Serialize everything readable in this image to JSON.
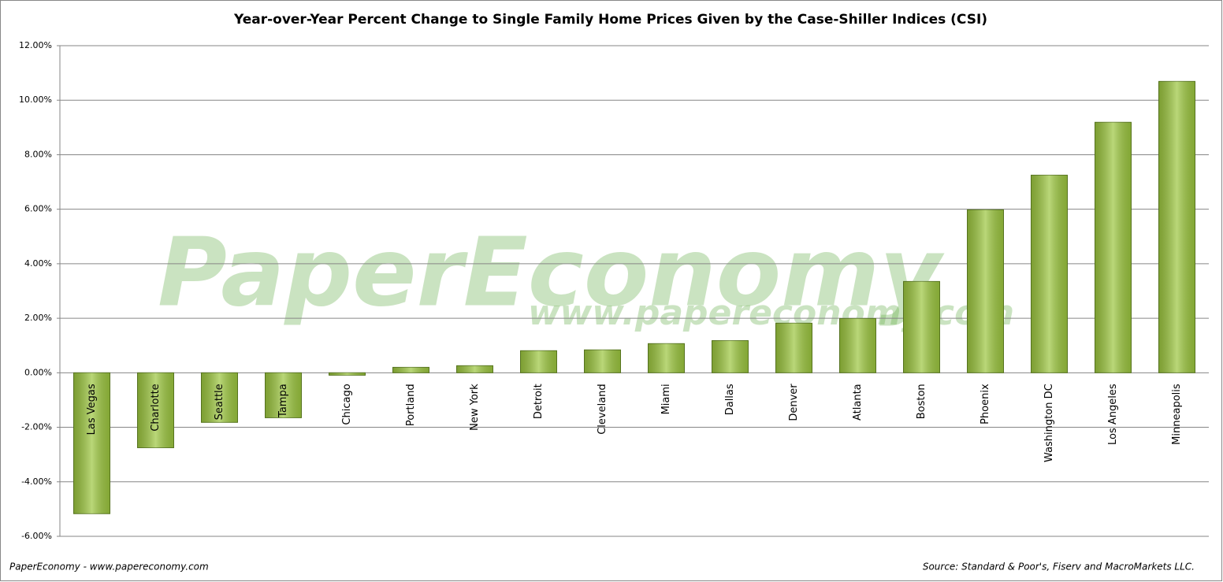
{
  "chart_data": {
    "type": "bar",
    "title": "Year-over-Year Percent Change to Single Family Home Prices Given by the Case-Shiller Indices (CSI)",
    "categories": [
      "Las Vegas",
      "Charlotte",
      "Seattle",
      "Tampa",
      "Chicago",
      "Portland",
      "New York",
      "Detroit",
      "Cleveland",
      "Miami",
      "Dallas",
      "Denver",
      "Atlanta",
      "Boston",
      "Phoenix",
      "Washington DC",
      "Los Angeles",
      "Minneapolis"
    ],
    "values": [
      -5.17,
      -2.75,
      -1.82,
      -1.65,
      -0.09,
      0.2,
      0.26,
      0.81,
      0.84,
      1.07,
      1.18,
      1.82,
      1.99,
      3.35,
      5.98,
      7.25,
      9.19,
      10.69
    ],
    "color": "#9cc63f",
    "ylim": [
      -6,
      12
    ],
    "yticks": [
      {
        "value": -6,
        "label": "-6.00%"
      },
      {
        "value": -4,
        "label": "-4.00%"
      },
      {
        "value": -2,
        "label": "-2.00%"
      },
      {
        "value": 0,
        "label": "0.00%"
      },
      {
        "value": 2,
        "label": "2.00%"
      },
      {
        "value": 4,
        "label": "4.00%"
      },
      {
        "value": 6,
        "label": "6.00%"
      },
      {
        "value": 8,
        "label": "8.00%"
      },
      {
        "value": 10,
        "label": "10.00%"
      },
      {
        "value": 12,
        "label": "12.00%"
      }
    ],
    "grid": true,
    "watermark": "PaperEconomy",
    "watermark_url": "www.papereconomy.com",
    "footer_left": "PaperEconomy - www.papereconomy.com",
    "footer_right": "Source: Standard & Poor's, Fiserv and MacroMarkets LLC."
  }
}
